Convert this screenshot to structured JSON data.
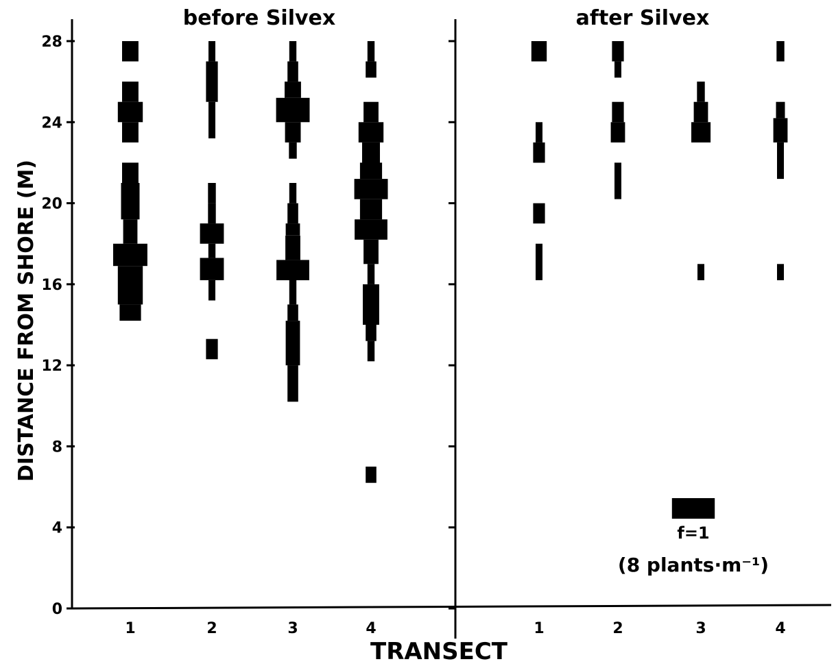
{
  "chart_data": {
    "type": "bar",
    "encoding": "kite diagram: bar width proportional to frequency f at each distance",
    "xlabel": "TRANSECT",
    "ylabel": "DISTANCE FROM SHORE (M)",
    "ylim": [
      0,
      28
    ],
    "yticks": [
      0,
      4,
      8,
      12,
      16,
      20,
      24,
      28
    ],
    "legend": {
      "f_label": "f=1",
      "unit_label": "(8 plants·m⁻¹)",
      "placement": "bottom-right"
    },
    "panels": [
      {
        "title": "before Silvex",
        "transects": [
          "1",
          "2",
          "3",
          "4"
        ],
        "series": [
          {
            "transect": "1",
            "segments": [
              {
                "y0": 14.2,
                "y1": 15.0,
                "f": 0.6
              },
              {
                "y0": 15.0,
                "y1": 16.9,
                "f": 0.7
              },
              {
                "y0": 16.9,
                "y1": 18.0,
                "f": 0.96
              },
              {
                "y0": 18.0,
                "y1": 19.2,
                "f": 0.4
              },
              {
                "y0": 19.2,
                "y1": 21.0,
                "f": 0.52
              },
              {
                "y0": 21.0,
                "y1": 22.0,
                "f": 0.46
              },
              {
                "y0": 23.0,
                "y1": 24.0,
                "f": 0.46
              },
              {
                "y0": 24.0,
                "y1": 25.0,
                "f": 0.7
              },
              {
                "y0": 25.0,
                "y1": 26.0,
                "f": 0.46
              },
              {
                "y0": 27.0,
                "y1": 28.0,
                "f": 0.46
              }
            ]
          },
          {
            "transect": "2",
            "segments": [
              {
                "y0": 12.3,
                "y1": 13.3,
                "f": 0.33
              },
              {
                "y0": 15.2,
                "y1": 16.2,
                "f": 0.16
              },
              {
                "y0": 16.2,
                "y1": 17.3,
                "f": 0.67
              },
              {
                "y0": 17.3,
                "y1": 18.0,
                "f": 0.2
              },
              {
                "y0": 18.0,
                "y1": 19.0,
                "f": 0.67
              },
              {
                "y0": 19.0,
                "y1": 20.0,
                "f": 0.22
              },
              {
                "y0": 20.0,
                "y1": 21.0,
                "f": 0.22
              },
              {
                "y0": 23.2,
                "y1": 25.0,
                "f": 0.16
              },
              {
                "y0": 25.0,
                "y1": 27.0,
                "f": 0.33
              },
              {
                "y0": 27.0,
                "y1": 28.0,
                "f": 0.16
              }
            ]
          },
          {
            "transect": "3",
            "segments": [
              {
                "y0": 10.2,
                "y1": 12.0,
                "f": 0.3
              },
              {
                "y0": 12.0,
                "y1": 14.2,
                "f": 0.4
              },
              {
                "y0": 14.2,
                "y1": 15.0,
                "f": 0.3
              },
              {
                "y0": 15.0,
                "y1": 16.2,
                "f": 0.2
              },
              {
                "y0": 16.2,
                "y1": 17.2,
                "f": 0.92
              },
              {
                "y0": 17.2,
                "y1": 18.4,
                "f": 0.42
              },
              {
                "y0": 18.4,
                "y1": 19.0,
                "f": 0.4
              },
              {
                "y0": 19.0,
                "y1": 20.0,
                "f": 0.3
              },
              {
                "y0": 20.0,
                "y1": 21.0,
                "f": 0.2
              },
              {
                "y0": 22.2,
                "y1": 23.0,
                "f": 0.22
              },
              {
                "y0": 23.0,
                "y1": 24.0,
                "f": 0.44
              },
              {
                "y0": 24.0,
                "y1": 25.2,
                "f": 0.94
              },
              {
                "y0": 25.2,
                "y1": 26.0,
                "f": 0.46
              },
              {
                "y0": 26.0,
                "y1": 27.0,
                "f": 0.3
              },
              {
                "y0": 27.0,
                "y1": 28.0,
                "f": 0.2
              }
            ]
          },
          {
            "transect": "4",
            "segments": [
              {
                "y0": 6.2,
                "y1": 7.0,
                "f": 0.3
              },
              {
                "y0": 12.2,
                "y1": 13.2,
                "f": 0.2
              },
              {
                "y0": 13.2,
                "y1": 14.0,
                "f": 0.3
              },
              {
                "y0": 14.0,
                "y1": 16.0,
                "f": 0.46
              },
              {
                "y0": 16.0,
                "y1": 17.0,
                "f": 0.2
              },
              {
                "y0": 17.0,
                "y1": 18.2,
                "f": 0.42
              },
              {
                "y0": 18.2,
                "y1": 19.2,
                "f": 0.92
              },
              {
                "y0": 19.2,
                "y1": 20.2,
                "f": 0.62
              },
              {
                "y0": 20.2,
                "y1": 21.2,
                "f": 0.94
              },
              {
                "y0": 21.2,
                "y1": 22.0,
                "f": 0.62
              },
              {
                "y0": 22.0,
                "y1": 23.0,
                "f": 0.5
              },
              {
                "y0": 23.0,
                "y1": 24.0,
                "f": 0.7
              },
              {
                "y0": 24.0,
                "y1": 25.0,
                "f": 0.42
              },
              {
                "y0": 26.2,
                "y1": 27.0,
                "f": 0.3
              },
              {
                "y0": 27.0,
                "y1": 28.0,
                "f": 0.2
              }
            ]
          }
        ]
      },
      {
        "title": "after Silvex",
        "transects": [
          "1",
          "2",
          "3",
          "4"
        ],
        "series": [
          {
            "transect": "1",
            "segments": [
              {
                "y0": 16.2,
                "y1": 18.0,
                "f": 0.16
              },
              {
                "y0": 19.0,
                "y1": 20.0,
                "f": 0.33
              },
              {
                "y0": 22.0,
                "y1": 23.0,
                "f": 0.33
              },
              {
                "y0": 23.0,
                "y1": 24.0,
                "f": 0.16
              },
              {
                "y0": 27.0,
                "y1": 28.0,
                "f": 0.43
              }
            ]
          },
          {
            "transect": "2",
            "segments": [
              {
                "y0": 20.2,
                "y1": 22.0,
                "f": 0.16
              },
              {
                "y0": 23.0,
                "y1": 24.0,
                "f": 0.4
              },
              {
                "y0": 24.0,
                "y1": 25.0,
                "f": 0.33
              },
              {
                "y0": 26.2,
                "y1": 27.0,
                "f": 0.16
              },
              {
                "y0": 27.0,
                "y1": 28.0,
                "f": 0.33
              }
            ]
          },
          {
            "transect": "3",
            "segments": [
              {
                "y0": 16.2,
                "y1": 17.0,
                "f": 0.16
              },
              {
                "y0": 23.0,
                "y1": 24.0,
                "f": 0.54
              },
              {
                "y0": 24.0,
                "y1": 25.0,
                "f": 0.4
              },
              {
                "y0": 25.0,
                "y1": 26.0,
                "f": 0.22
              }
            ]
          },
          {
            "transect": "4",
            "segments": [
              {
                "y0": 16.2,
                "y1": 17.0,
                "f": 0.16
              },
              {
                "y0": 21.2,
                "y1": 23.0,
                "f": 0.16
              },
              {
                "y0": 23.0,
                "y1": 24.2,
                "f": 0.4
              },
              {
                "y0": 24.2,
                "y1": 25.0,
                "f": 0.25
              },
              {
                "y0": 27.0,
                "y1": 28.0,
                "f": 0.22
              }
            ]
          }
        ]
      }
    ]
  }
}
